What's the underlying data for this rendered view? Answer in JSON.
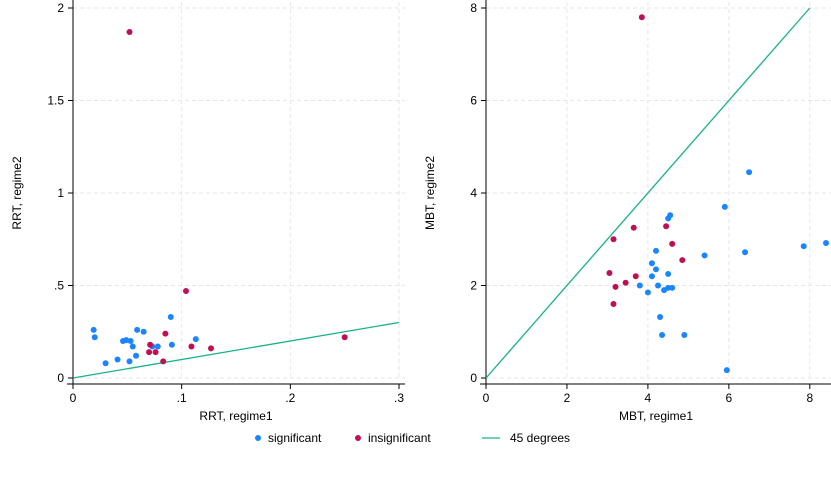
{
  "colors": {
    "significant": "#1a85ff",
    "insignificant": "#c10f56",
    "line45": "#17b38a",
    "grid": "#e6e6e6",
    "axis": "#000000"
  },
  "legend": {
    "items": [
      {
        "label": "significant",
        "kind": "point",
        "color_key": "significant"
      },
      {
        "label": "insignificant",
        "kind": "point",
        "color_key": "insignificant"
      },
      {
        "label": "45 degrees",
        "kind": "line",
        "color_key": "line45"
      }
    ]
  },
  "chart_data": [
    {
      "type": "scatter",
      "xlabel": "RRT, regime1",
      "ylabel": "RRT, regime2",
      "xlim": [
        0,
        0.3
      ],
      "ylim": [
        0,
        2
      ],
      "xticks": [
        {
          "v": 0,
          "label": "0"
        },
        {
          "v": 0.1,
          "label": ".1"
        },
        {
          "v": 0.2,
          "label": ".2"
        },
        {
          "v": 0.3,
          "label": ".3"
        }
      ],
      "yticks": [
        {
          "v": 0,
          "label": "0"
        },
        {
          "v": 0.5,
          "label": ".5"
        },
        {
          "v": 1,
          "label": "1"
        },
        {
          "v": 1.5,
          "label": "1.5"
        },
        {
          "v": 2,
          "label": "2"
        }
      ],
      "grid": true,
      "line45": {
        "from": [
          0,
          0
        ],
        "to": [
          0.3,
          0.3
        ]
      },
      "series": [
        {
          "name": "significant",
          "color_key": "significant",
          "points": [
            [
              0.019,
              0.26
            ],
            [
              0.02,
              0.22
            ],
            [
              0.03,
              0.08
            ],
            [
              0.041,
              0.1
            ],
            [
              0.046,
              0.2
            ],
            [
              0.049,
              0.205
            ],
            [
              0.052,
              0.09
            ],
            [
              0.053,
              0.2
            ],
            [
              0.055,
              0.17
            ],
            [
              0.058,
              0.12
            ],
            [
              0.059,
              0.26
            ],
            [
              0.065,
              0.25
            ],
            [
              0.073,
              0.17
            ],
            [
              0.078,
              0.17
            ],
            [
              0.09,
              0.33
            ],
            [
              0.091,
              0.18
            ],
            [
              0.113,
              0.21
            ]
          ]
        },
        {
          "name": "insignificant",
          "color_key": "insignificant",
          "points": [
            [
              0.052,
              1.87
            ],
            [
              0.07,
              0.14
            ],
            [
              0.071,
              0.18
            ],
            [
              0.076,
              0.14
            ],
            [
              0.083,
              0.09
            ],
            [
              0.085,
              0.24
            ],
            [
              0.104,
              0.47
            ],
            [
              0.109,
              0.17
            ],
            [
              0.127,
              0.16
            ],
            [
              0.25,
              0.22
            ]
          ]
        }
      ]
    },
    {
      "type": "scatter",
      "xlabel": "MBT, regime1",
      "ylabel": "MBT, regime2",
      "xlim": [
        0,
        8.4
      ],
      "ylim": [
        0,
        8
      ],
      "xticks": [
        {
          "v": 0,
          "label": "0"
        },
        {
          "v": 2,
          "label": "2"
        },
        {
          "v": 4,
          "label": "4"
        },
        {
          "v": 6,
          "label": "6"
        },
        {
          "v": 8,
          "label": "8"
        }
      ],
      "yticks": [
        {
          "v": 0,
          "label": "0"
        },
        {
          "v": 2,
          "label": "2"
        },
        {
          "v": 4,
          "label": "4"
        },
        {
          "v": 6,
          "label": "6"
        },
        {
          "v": 8,
          "label": "8"
        }
      ],
      "grid": true,
      "line45": {
        "from": [
          0,
          0
        ],
        "to": [
          8,
          8
        ]
      },
      "series": [
        {
          "name": "significant",
          "color_key": "significant",
          "points": [
            [
              3.8,
              2.0
            ],
            [
              4.0,
              1.85
            ],
            [
              4.1,
              2.2
            ],
            [
              4.1,
              2.48
            ],
            [
              4.2,
              2.75
            ],
            [
              4.2,
              2.35
            ],
            [
              4.25,
              2.0
            ],
            [
              4.3,
              1.32
            ],
            [
              4.35,
              0.93
            ],
            [
              4.4,
              1.9
            ],
            [
              4.5,
              2.25
            ],
            [
              4.5,
              3.45
            ],
            [
              4.55,
              3.52
            ],
            [
              4.5,
              1.95
            ],
            [
              4.6,
              1.95
            ],
            [
              4.9,
              0.93
            ],
            [
              5.4,
              2.65
            ],
            [
              5.9,
              3.7
            ],
            [
              5.95,
              0.17
            ],
            [
              6.4,
              2.72
            ],
            [
              6.5,
              4.45
            ],
            [
              7.85,
              2.85
            ],
            [
              8.4,
              2.92
            ]
          ]
        },
        {
          "name": "insignificant",
          "color_key": "insignificant",
          "points": [
            [
              3.05,
              2.27
            ],
            [
              3.15,
              3.0
            ],
            [
              3.15,
              1.6
            ],
            [
              3.2,
              1.97
            ],
            [
              3.45,
              2.06
            ],
            [
              3.7,
              2.2
            ],
            [
              3.65,
              3.25
            ],
            [
              3.85,
              7.8
            ],
            [
              4.45,
              3.28
            ],
            [
              4.6,
              2.9
            ],
            [
              4.85,
              2.55
            ]
          ]
        }
      ]
    }
  ]
}
